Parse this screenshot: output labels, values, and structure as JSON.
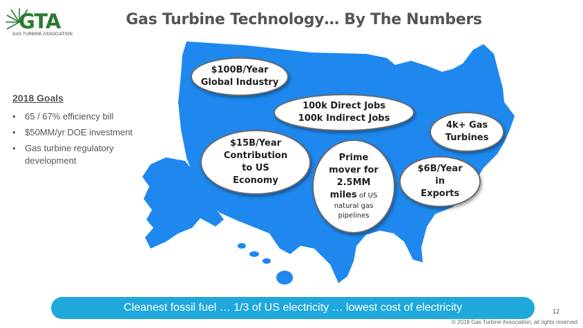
{
  "logo": {
    "text": "GTA",
    "subtitle": "GAS TURBINE ASSOCIATION"
  },
  "title": "Gas Turbine Technology… By The Numbers",
  "goals": {
    "title": "2018 Goals",
    "items": [
      "65 / 67% efficiency bill",
      "$50MM/yr DOE investment",
      "Gas turbine regulatory development"
    ]
  },
  "bubbles": {
    "global": {
      "line1": "$100B/Year",
      "line2": "Global Industry"
    },
    "jobs": {
      "line1": "100k Direct Jobs",
      "line2": "100k Indirect Jobs"
    },
    "turbines": {
      "line1": "4k+ Gas",
      "line2": "Turbines"
    },
    "contribution": {
      "line1": "$15B/Year",
      "line2": "Contribution",
      "line3": "to US",
      "line4": "Economy"
    },
    "prime": {
      "line1": "Prime",
      "line2": "mover for",
      "line3": "2.5MM",
      "line4_bold": "miles",
      "line4_small": " of US",
      "line5": "natural gas",
      "line6": "pipelines"
    },
    "exports": {
      "line1": "$6B/Year",
      "line2": "in",
      "line3": "Exports"
    }
  },
  "banner": "Cleanest fossil fuel … 1/3 of US electricity … lowest cost of electricity",
  "page_number": "12",
  "copyright": "© 2018 Gas Turbine Association, all rights reserved",
  "colors": {
    "map": "#1e88ee",
    "banner": "#1fa8dc",
    "logo_green": "#2a7a33",
    "title_gray": "#555555"
  }
}
